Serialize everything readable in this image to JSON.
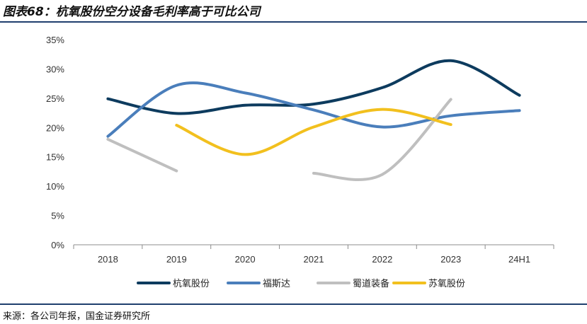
{
  "page": {
    "title": "图表68：杭氧股份空分设备毛利率高于可比公司",
    "source": "来源：各公司年报，国金证券研究所"
  },
  "chart_data": {
    "type": "line",
    "title": "图表68：杭氧股份空分设备毛利率高于可比公司",
    "xlabel": "",
    "ylabel": "",
    "categories": [
      "2018",
      "2019",
      "2020",
      "2021",
      "2022",
      "2023",
      "24H1"
    ],
    "ylim": [
      0,
      35
    ],
    "yticks": [
      "0%",
      "5%",
      "10%",
      "15%",
      "20%",
      "25%",
      "30%",
      "35%"
    ],
    "grid": false,
    "legend_position": "bottom",
    "series": [
      {
        "name": "杭氧股份",
        "color": "#0d3b5e",
        "values": [
          24.9,
          22.4,
          23.8,
          24.0,
          26.8,
          31.4,
          25.5
        ]
      },
      {
        "name": "福斯达",
        "color": "#4a7ebb",
        "values": [
          18.5,
          27.2,
          25.9,
          23.0,
          20.1,
          22.0,
          22.9
        ]
      },
      {
        "name": "蜀道装备",
        "color": "#bfbfbf",
        "values": [
          18.0,
          12.6,
          null,
          12.2,
          12.0,
          24.8,
          null
        ]
      },
      {
        "name": "苏氧股份",
        "color": "#f2c01e",
        "values": [
          null,
          20.4,
          15.4,
          20.1,
          23.1,
          20.5,
          null
        ]
      }
    ]
  }
}
